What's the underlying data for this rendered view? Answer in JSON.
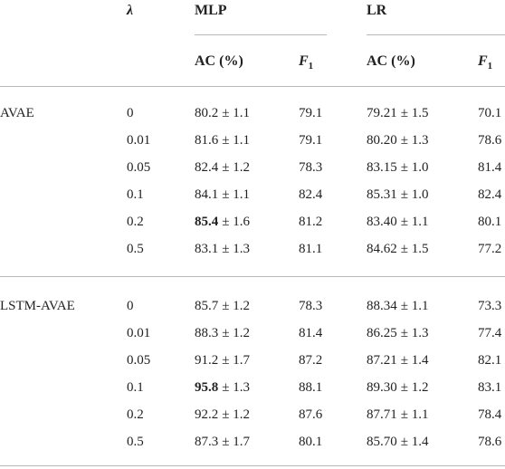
{
  "table": {
    "header": {
      "lambda": "λ",
      "mlp": "MLP",
      "lr": "LR",
      "sub": [
        {
          "text": "AC (%)"
        },
        {
          "symbol": "F",
          "subscript": "1"
        },
        {
          "text": "AC (%)"
        },
        {
          "symbol": "F",
          "subscript": "1"
        }
      ]
    },
    "groups": [
      {
        "label": "AVAE",
        "rows": [
          {
            "lambda": "0",
            "mlp_ac": {
              "main": "80.2",
              "err": "± 1.1"
            },
            "mlp_f1": "79.1",
            "lr_ac": {
              "main": "79.21",
              "err": "± 1.5"
            },
            "lr_f1": "70.1"
          },
          {
            "lambda": "0.01",
            "mlp_ac": {
              "main": "81.6",
              "err": "± 1.1"
            },
            "mlp_f1": "79.1",
            "lr_ac": {
              "main": "80.20",
              "err": "± 1.3"
            },
            "lr_f1": "78.6"
          },
          {
            "lambda": "0.05",
            "mlp_ac": {
              "main": "82.4",
              "err": "± 1.2"
            },
            "mlp_f1": "78.3",
            "lr_ac": {
              "main": "83.15",
              "err": "± 1.0"
            },
            "lr_f1": "81.4"
          },
          {
            "lambda": "0.1",
            "mlp_ac": {
              "main": "84.1",
              "err": "± 1.1"
            },
            "mlp_f1": "82.4",
            "lr_ac": {
              "main": "85.31",
              "err": "± 1.0"
            },
            "lr_f1": "82.4"
          },
          {
            "lambda": "0.2",
            "mlp_ac": {
              "main": "85.4",
              "err": "± 1.6",
              "bold": true
            },
            "mlp_f1": "81.2",
            "lr_ac": {
              "main": "83.40",
              "err": "± 1.1"
            },
            "lr_f1": "80.1"
          },
          {
            "lambda": "0.5",
            "mlp_ac": {
              "main": "83.1",
              "err": "± 1.3"
            },
            "mlp_f1": "81.1",
            "lr_ac": {
              "main": "84.62",
              "err": "± 1.5"
            },
            "lr_f1": "77.2"
          }
        ]
      },
      {
        "label": "LSTM-AVAE",
        "rows": [
          {
            "lambda": "0",
            "mlp_ac": {
              "main": "85.7",
              "err": "± 1.2"
            },
            "mlp_f1": "78.3",
            "lr_ac": {
              "main": "88.34",
              "err": "± 1.1"
            },
            "lr_f1": "73.3"
          },
          {
            "lambda": "0.01",
            "mlp_ac": {
              "main": "88.3",
              "err": "± 1.2"
            },
            "mlp_f1": "81.4",
            "lr_ac": {
              "main": "86.25",
              "err": "± 1.3"
            },
            "lr_f1": "77.4"
          },
          {
            "lambda": "0.05",
            "mlp_ac": {
              "main": "91.2",
              "err": "± 1.7"
            },
            "mlp_f1": "87.2",
            "lr_ac": {
              "main": "87.21",
              "err": "± 1.4"
            },
            "lr_f1": "82.1"
          },
          {
            "lambda": "0.1",
            "mlp_ac": {
              "main": "95.8",
              "err": "± 1.3",
              "bold": true
            },
            "mlp_f1": "88.1",
            "lr_ac": {
              "main": "89.30",
              "err": "± 1.2"
            },
            "lr_f1": "83.1"
          },
          {
            "lambda": "0.2",
            "mlp_ac": {
              "main": "92.2",
              "err": "± 1.2"
            },
            "mlp_f1": "87.6",
            "lr_ac": {
              "main": "87.71",
              "err": "± 1.1"
            },
            "lr_f1": "78.4"
          },
          {
            "lambda": "0.5",
            "mlp_ac": {
              "main": "87.3",
              "err": "± 1.7"
            },
            "mlp_f1": "80.1",
            "lr_ac": {
              "main": "85.70",
              "err": "± 1.4"
            },
            "lr_f1": "78.6"
          }
        ]
      }
    ]
  }
}
